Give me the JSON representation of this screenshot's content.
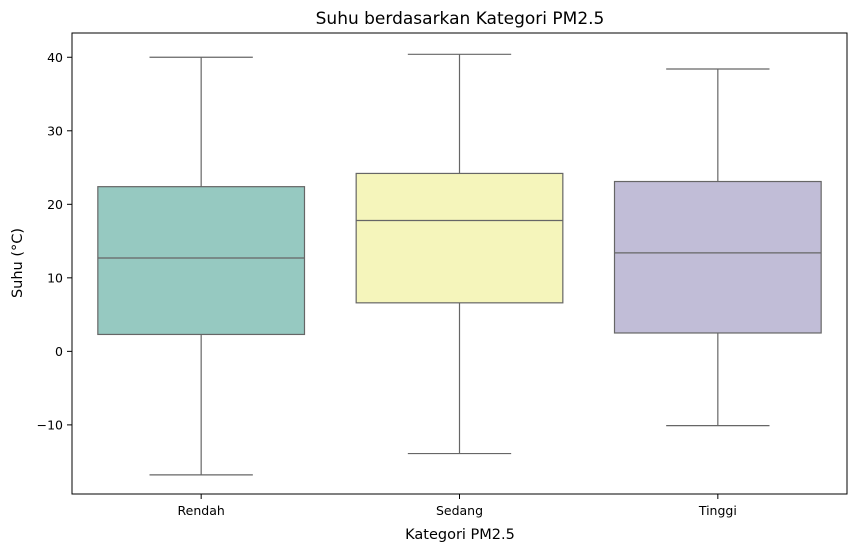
{
  "chart_data": {
    "type": "box",
    "title": "Suhu berdasarkan Kategori PM2.5",
    "xlabel": "Kategori PM2.5",
    "ylabel": "Suhu (°C)",
    "ylim": [
      -19.4,
      43.3
    ],
    "yticks": [
      40,
      30,
      20,
      10,
      0,
      -10
    ],
    "ytick_labels": [
      "40",
      "30",
      "20",
      "10",
      "0",
      "−10"
    ],
    "grid": false,
    "categories": [
      "Rendah",
      "Sedang",
      "Tinggi"
    ],
    "boxes": [
      {
        "category": "Rendah",
        "whisker_low": -16.8,
        "q1": 2.3,
        "median": 12.7,
        "q3": 22.4,
        "whisker_high": 40.0,
        "color": "#96c9c1"
      },
      {
        "category": "Sedang",
        "whisker_low": -13.9,
        "q1": 6.6,
        "median": 17.8,
        "q3": 24.2,
        "whisker_high": 40.4,
        "color": "#f5f5bb"
      },
      {
        "category": "Tinggi",
        "whisker_low": -10.1,
        "q1": 2.5,
        "median": 13.4,
        "q3": 23.1,
        "whisker_high": 38.4,
        "color": "#c1bdd7"
      }
    ],
    "line_color": "#666666"
  }
}
